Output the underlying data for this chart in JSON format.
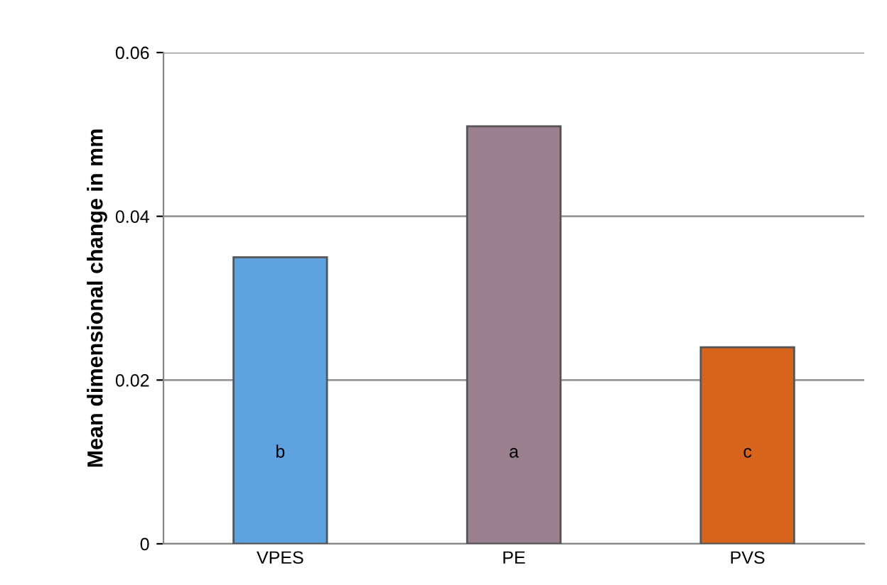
{
  "chart_data": {
    "type": "bar",
    "ylabel": "Mean dimensional change in mm",
    "categories": [
      "VPES",
      "PE",
      "PVS"
    ],
    "values": [
      0.035,
      0.051,
      0.024
    ],
    "colors": [
      "#5fa2e0",
      "#9a7f8f",
      "#d6641c"
    ],
    "ylim": [
      0,
      0.06
    ],
    "yticks": [
      {
        "value": 0,
        "label": "0"
      },
      {
        "value": 0.02,
        "label": "0.02"
      },
      {
        "value": 0.04,
        "label": "0.04"
      },
      {
        "value": 0.06,
        "label": "0.06"
      }
    ],
    "grid": "y",
    "annotations": [
      "b",
      "a",
      "c"
    ]
  }
}
